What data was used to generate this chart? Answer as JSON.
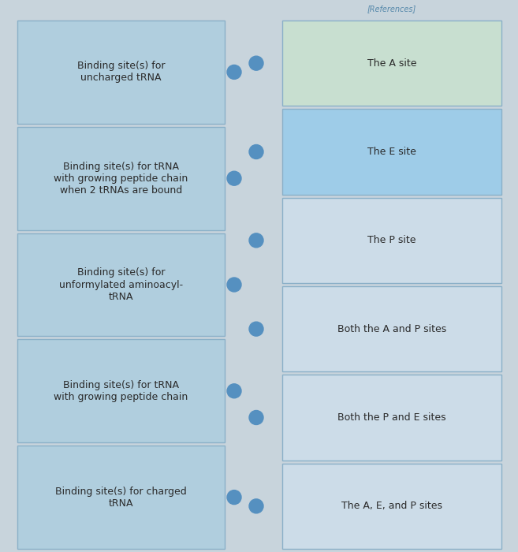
{
  "bg_color": "#c8d4dc",
  "left_box_color": "#b0cede",
  "left_box_edge": "#8ab0c8",
  "right_box_colors": [
    "#c8dfd0",
    "#9ecce8",
    "#ccdce8",
    "#ccdce8",
    "#ccdce8",
    "#ccdce8"
  ],
  "right_box_edge": "#8ab0c8",
  "title_bar_color": "#c8d4dc",
  "title_bar_edge": "#8ab0c8",
  "dot_color": "#5590c0",
  "left_labels": [
    "Binding site(s) for\nuncharged tRNA",
    "Binding site(s) for tRNA\nwith growing peptide chain\nwhen 2 tRNAs are bound",
    "Binding site(s) for\nunformylated aminoacyl-\ntRNA",
    "Binding site(s) for tRNA\nwith growing peptide chain",
    "Binding site(s) for charged\ntRNA"
  ],
  "right_labels": [
    "The A site",
    "The E site",
    "The P site",
    "Both the A and P sites",
    "Both the P and E sites",
    "The A, E, and P sites"
  ],
  "title_text": "[References]",
  "fig_width": 6.57,
  "fig_height": 7.0,
  "dpi": 100
}
